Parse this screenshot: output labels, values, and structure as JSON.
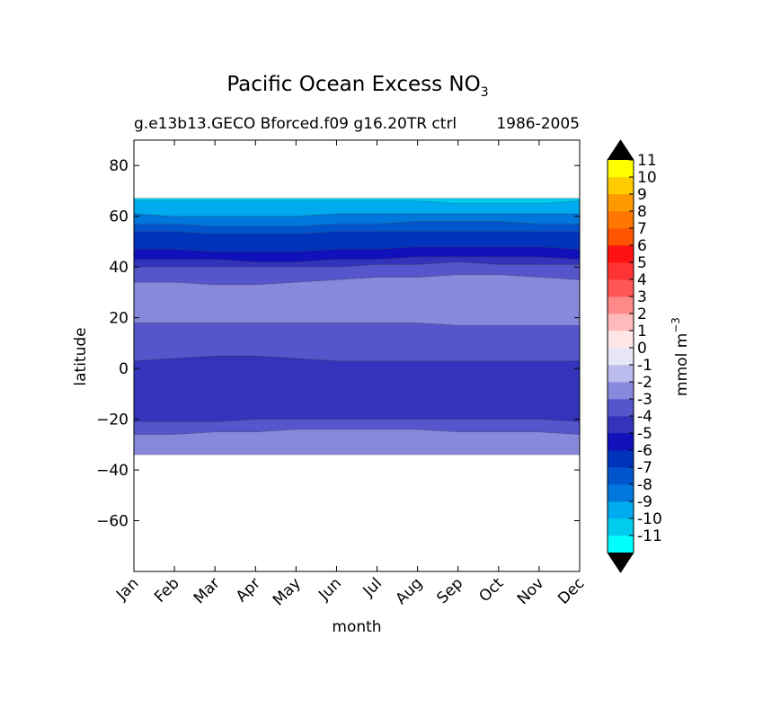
{
  "chart_data": {
    "type": "contourf",
    "title": "Pacific Ocean Excess NO",
    "title_subscript": "3",
    "subtitle_left": "g.e13b13.GECO Bforced.f09 g16.20TR ctrl",
    "subtitle_right": "1986-2005",
    "xlabel": "month",
    "ylabel": "latitude",
    "x": [
      "Jan",
      "Feb",
      "Mar",
      "Apr",
      "May",
      "Jun",
      "Jul",
      "Aug",
      "Sep",
      "Oct",
      "Nov",
      "Dec"
    ],
    "xlim": [
      0,
      11
    ],
    "ylim": [
      -80,
      90
    ],
    "yticks": [
      80,
      60,
      40,
      20,
      0,
      -20,
      -40,
      -60
    ],
    "ytick_labels": [
      "80",
      "60",
      "40",
      "20",
      "0",
      "−20",
      "−40",
      "−60"
    ],
    "colorbar": {
      "label": "mmol m",
      "label_superscript": "−3",
      "ticks": [
        "-11",
        "-10",
        "-9",
        "-8",
        "-7",
        "-6",
        "-5",
        "-4",
        "-3",
        "-2",
        "-1",
        "0",
        "1",
        "2",
        "3",
        "4",
        "5",
        "6",
        "7",
        "8",
        "9",
        "10",
        "11"
      ],
      "colors": [
        "#00ffff",
        "#00ccee",
        "#00aaee",
        "#0077dd",
        "#0055cc",
        "#0033bb",
        "#1111bb",
        "#3333bb",
        "#5555cc",
        "#8888dd",
        "#bbbbee",
        "#e6e6f6",
        "#ffe6e6",
        "#ffbbbb",
        "#ff8888",
        "#ff5555",
        "#ff3333",
        "#ff1111",
        "#ff5500",
        "#ff7700",
        "#ff9900",
        "#ffcc00",
        "#ffff00"
      ],
      "extend_color": "#000000"
    },
    "bands": [
      {
        "low": [
          -34,
          -34,
          -34,
          -34,
          -34,
          -34,
          -34,
          -34,
          -34,
          -34,
          -34,
          -34
        ],
        "high": [
          -26,
          -26,
          -25,
          -25,
          -24,
          -24,
          -24,
          -24,
          -25,
          -25,
          -25,
          -26
        ],
        "color": "#8888dd"
      },
      {
        "low": [
          -26,
          -26,
          -25,
          -25,
          -24,
          -24,
          -24,
          -24,
          -25,
          -25,
          -25,
          -26
        ],
        "high": [
          -21,
          -21,
          -21,
          -20,
          -20,
          -20,
          -20,
          -20,
          -20,
          -20,
          -20,
          -21
        ],
        "color": "#5555cc"
      },
      {
        "low": [
          -21,
          -21,
          -21,
          -20,
          -20,
          -20,
          -20,
          -20,
          -20,
          -20,
          -20,
          -21
        ],
        "high": [
          3,
          4,
          5,
          5,
          4,
          3,
          3,
          3,
          3,
          3,
          3,
          3
        ],
        "color": "#3333bb"
      },
      {
        "low": [
          3,
          4,
          5,
          5,
          4,
          3,
          3,
          3,
          3,
          3,
          3,
          3
        ],
        "high": [
          18,
          18,
          18,
          18,
          18,
          18,
          18,
          18,
          17,
          17,
          17,
          17
        ],
        "color": "#5555cc"
      },
      {
        "low": [
          18,
          18,
          18,
          18,
          18,
          18,
          18,
          18,
          17,
          17,
          17,
          17
        ],
        "high": [
          34,
          34,
          33,
          33,
          34,
          35,
          36,
          36,
          37,
          37,
          36,
          35
        ],
        "color": "#8888dd"
      },
      {
        "low": [
          34,
          34,
          33,
          33,
          34,
          35,
          36,
          36,
          37,
          37,
          36,
          35
        ],
        "high": [
          40,
          40,
          40,
          40,
          40,
          40,
          41,
          41,
          42,
          41,
          41,
          41
        ],
        "color": "#5555cc"
      },
      {
        "low": [
          40,
          40,
          40,
          40,
          40,
          40,
          41,
          41,
          42,
          41,
          41,
          41
        ],
        "high": [
          43,
          43,
          43,
          42,
          42,
          43,
          43,
          44,
          44,
          44,
          44,
          43
        ],
        "color": "#3333bb"
      },
      {
        "low": [
          43,
          43,
          43,
          42,
          42,
          43,
          43,
          44,
          44,
          44,
          44,
          43
        ],
        "high": [
          47,
          47,
          46,
          46,
          46,
          47,
          47,
          48,
          48,
          48,
          48,
          47
        ],
        "color": "#1111bb"
      },
      {
        "low": [
          47,
          47,
          46,
          46,
          46,
          47,
          47,
          48,
          48,
          48,
          48,
          47
        ],
        "high": [
          54,
          54,
          53,
          53,
          53,
          54,
          54,
          54,
          54,
          54,
          54,
          54
        ],
        "color": "#0033bb"
      },
      {
        "low": [
          54,
          54,
          53,
          53,
          53,
          54,
          54,
          54,
          54,
          54,
          54,
          54
        ],
        "high": [
          57,
          57,
          56,
          56,
          56,
          57,
          57,
          58,
          58,
          58,
          57,
          57
        ],
        "color": "#0055cc"
      },
      {
        "low": [
          57,
          57,
          56,
          56,
          56,
          57,
          57,
          58,
          58,
          58,
          57,
          57
        ],
        "high": [
          61,
          60,
          60,
          60,
          60,
          61,
          61,
          61,
          61,
          61,
          61,
          61
        ],
        "color": "#0077dd"
      },
      {
        "low": [
          61,
          60,
          60,
          60,
          60,
          61,
          61,
          61,
          61,
          61,
          61,
          61
        ],
        "high": [
          67,
          67,
          67,
          67,
          67,
          67,
          67,
          67,
          67,
          67,
          67,
          67
        ],
        "color": "#00aaee"
      },
      {
        "low": [
          66,
          66,
          66,
          66,
          66,
          66,
          66,
          66,
          65,
          65,
          65,
          66
        ],
        "high": [
          67,
          67,
          67,
          67,
          67,
          67,
          67,
          67,
          67,
          67,
          67,
          67
        ],
        "color": "#00ccee"
      }
    ]
  }
}
